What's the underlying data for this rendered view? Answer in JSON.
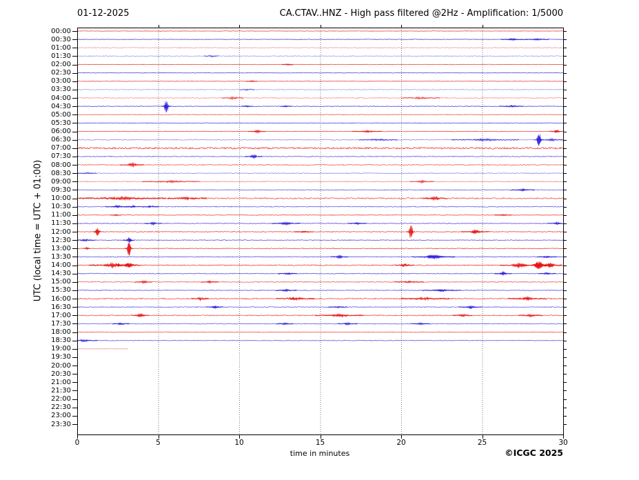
{
  "chart_data": {
    "type": "line",
    "subtype": "helicorder-day-plot",
    "date": "01-12-2025",
    "title": "CA.CTAV..HNZ - High pass filtered @2Hz - Amplification: 1/5000",
    "xlabel": "time in minutes",
    "ylabel": "UTC (local time = UTC + 01:00)",
    "copyright": "©ICGC 2025",
    "xlim": [
      0,
      30
    ],
    "xticks": [
      0,
      5,
      10,
      15,
      20,
      25,
      30
    ],
    "grid": {
      "vertical_dotted_at": [
        5,
        10,
        15,
        20,
        25
      ]
    },
    "trace_colors": {
      "red": "#e81414",
      "blue": "#2414dd"
    },
    "minutes_per_line": 30,
    "legend": "rows alternate red/blue per 30-minute segment; amp = background noise level, events = transient bursts (m = minute, a = relative amplitude, w = width in minutes)",
    "rows": [
      {
        "label": "00:00",
        "color": "red",
        "amp": 0.45,
        "alpha": 0.8,
        "end": 30,
        "events": []
      },
      {
        "label": "00:30",
        "color": "blue",
        "amp": 0.5,
        "alpha": 0.8,
        "end": 30,
        "events": [
          {
            "m": 26.9,
            "a": 1.1,
            "w": 0.25
          },
          {
            "m": 28.4,
            "a": 0.9,
            "w": 0.25
          }
        ]
      },
      {
        "label": "01:00",
        "color": "red",
        "amp": 0.85,
        "alpha": 0.4,
        "end": 30,
        "events": []
      },
      {
        "label": "01:30",
        "color": "blue",
        "amp": 0.85,
        "alpha": 0.4,
        "end": 30,
        "events": [
          {
            "m": 8.3,
            "a": 1.2,
            "w": 0.15
          }
        ]
      },
      {
        "label": "02:00",
        "color": "red",
        "amp": 0.45,
        "alpha": 0.8,
        "end": 30,
        "events": [
          {
            "m": 13,
            "a": 0.9,
            "w": 0.12
          }
        ]
      },
      {
        "label": "02:30",
        "color": "blue",
        "amp": 0.45,
        "alpha": 0.8,
        "end": 30,
        "events": []
      },
      {
        "label": "03:00",
        "color": "red",
        "amp": 0.4,
        "alpha": 0.8,
        "end": 30,
        "events": [
          {
            "m": 10.8,
            "a": 0.8,
            "w": 0.12
          }
        ]
      },
      {
        "label": "03:30",
        "color": "blue",
        "amp": 0.8,
        "alpha": 0.4,
        "end": 30,
        "events": [
          {
            "m": 10.5,
            "a": 1,
            "w": 0.15
          }
        ]
      },
      {
        "label": "04:00",
        "color": "red",
        "amp": 0.85,
        "alpha": 0.45,
        "end": 30,
        "events": [
          {
            "m": 9.6,
            "a": 2.2,
            "w": 0.22
          },
          {
            "m": 21.2,
            "a": 1.2,
            "w": 0.4
          }
        ]
      },
      {
        "label": "04:30",
        "color": "blue",
        "amp": 0.55,
        "alpha": 0.8,
        "end": 30,
        "events": [
          {
            "m": 5.5,
            "a": 9,
            "w": 0.1
          },
          {
            "m": 10.5,
            "a": 1.2,
            "w": 0.12
          },
          {
            "m": 12.9,
            "a": 0.9,
            "w": 0.12
          },
          {
            "m": 26.8,
            "a": 1.2,
            "w": 0.25
          }
        ]
      },
      {
        "label": "05:00",
        "color": "red",
        "amp": 0.6,
        "alpha": 0.7,
        "end": 30,
        "events": []
      },
      {
        "label": "05:30",
        "color": "blue",
        "amp": 0.5,
        "alpha": 0.8,
        "end": 30,
        "events": []
      },
      {
        "label": "06:00",
        "color": "red",
        "amp": 0.5,
        "alpha": 0.8,
        "end": 30,
        "events": [
          {
            "m": 11.1,
            "a": 1.8,
            "w": 0.18
          },
          {
            "m": 17.9,
            "a": 1.1,
            "w": 0.3
          },
          {
            "m": 29.6,
            "a": 1.8,
            "w": 0.15
          }
        ]
      },
      {
        "label": "06:30",
        "color": "blue",
        "amp": 0.75,
        "alpha": 0.5,
        "end": 30,
        "events": [
          {
            "m": 28.5,
            "a": 9.5,
            "w": 0.1
          },
          {
            "m": 25.2,
            "a": 1.3,
            "w": 0.7
          },
          {
            "m": 18.6,
            "a": 1.1,
            "w": 0.4
          },
          {
            "m": 29.3,
            "a": 1.5,
            "w": 0.3
          }
        ]
      },
      {
        "label": "07:00",
        "color": "red",
        "amp": 1.5,
        "alpha": 0.85,
        "end": 30,
        "events": []
      },
      {
        "label": "07:30",
        "color": "blue",
        "amp": 0.75,
        "alpha": 0.7,
        "end": 30,
        "events": [
          {
            "m": 10.9,
            "a": 2.2,
            "w": 0.18
          }
        ]
      },
      {
        "label": "08:00",
        "color": "red",
        "amp": 0.75,
        "alpha": 0.7,
        "end": 30,
        "events": [
          {
            "m": 3.4,
            "a": 2.2,
            "w": 0.25
          }
        ]
      },
      {
        "label": "08:30",
        "color": "blue",
        "amp": 0.65,
        "alpha": 0.5,
        "end": 30,
        "events": [
          {
            "m": 0.6,
            "a": 0.9,
            "w": 0.2
          }
        ]
      },
      {
        "label": "09:00",
        "color": "red",
        "amp": 0.75,
        "alpha": 0.5,
        "end": 30,
        "events": [
          {
            "m": 5.8,
            "a": 1.4,
            "w": 0.6
          },
          {
            "m": 21.3,
            "a": 1.4,
            "w": 0.25
          }
        ]
      },
      {
        "label": "09:30",
        "color": "blue",
        "amp": 0.6,
        "alpha": 0.7,
        "end": 30,
        "events": [
          {
            "m": 27.5,
            "a": 1.4,
            "w": 0.25
          }
        ]
      },
      {
        "label": "10:00",
        "color": "red",
        "amp": 1.15,
        "alpha": 0.75,
        "end": 30,
        "events": [
          {
            "m": 2.8,
            "a": 1.8,
            "w": 0.9
          },
          {
            "m": 6.8,
            "a": 1.5,
            "w": 0.4
          },
          {
            "m": 22.1,
            "a": 1.8,
            "w": 0.25
          }
        ]
      },
      {
        "label": "10:30",
        "color": "blue",
        "amp": 0.75,
        "alpha": 0.7,
        "end": 30,
        "events": [
          {
            "m": 2.5,
            "a": 1.3,
            "w": 0.25
          },
          {
            "m": 3.4,
            "a": 1.3,
            "w": 0.18
          },
          {
            "m": 4.5,
            "a": 1.1,
            "w": 0.18
          }
        ]
      },
      {
        "label": "11:00",
        "color": "red",
        "amp": 0.5,
        "alpha": 0.8,
        "end": 30,
        "events": [
          {
            "m": 2.4,
            "a": 0.9,
            "w": 0.12
          },
          {
            "m": 26.3,
            "a": 0.9,
            "w": 0.18
          }
        ]
      },
      {
        "label": "11:30",
        "color": "blue",
        "amp": 0.65,
        "alpha": 0.75,
        "end": 30,
        "events": [
          {
            "m": 4.7,
            "a": 1.7,
            "w": 0.18
          },
          {
            "m": 12.9,
            "a": 1.9,
            "w": 0.3
          },
          {
            "m": 17.3,
            "a": 1.1,
            "w": 0.2
          },
          {
            "m": 29.6,
            "a": 1.4,
            "w": 0.2
          }
        ]
      },
      {
        "label": "12:00",
        "color": "red",
        "amp": 0.65,
        "alpha": 0.8,
        "end": 30,
        "events": [
          {
            "m": 1.25,
            "a": 5.5,
            "w": 0.09
          },
          {
            "m": 20.6,
            "a": 12,
            "w": 0.09
          },
          {
            "m": 24.6,
            "a": 1.9,
            "w": 0.3
          },
          {
            "m": 14,
            "a": 0.9,
            "w": 0.2
          }
        ]
      },
      {
        "label": "12:30",
        "color": "blue",
        "amp": 0.65,
        "alpha": 0.75,
        "end": 30,
        "events": [
          {
            "m": 0.5,
            "a": 1.4,
            "w": 0.2
          },
          {
            "m": 3.2,
            "a": 3.2,
            "w": 0.12
          }
        ]
      },
      {
        "label": "13:00",
        "color": "red",
        "amp": 0.65,
        "alpha": 0.8,
        "end": 30,
        "events": [
          {
            "m": 0.6,
            "a": 1.8,
            "w": 0.07
          },
          {
            "m": 3.2,
            "a": 11.5,
            "w": 0.09
          }
        ]
      },
      {
        "label": "13:30",
        "color": "blue",
        "amp": 0.65,
        "alpha": 0.75,
        "end": 30,
        "events": [
          {
            "m": 16.2,
            "a": 1.9,
            "w": 0.18
          },
          {
            "m": 22,
            "a": 2.3,
            "w": 0.45
          },
          {
            "m": 29,
            "a": 0.9,
            "w": 0.2
          }
        ]
      },
      {
        "label": "14:00",
        "color": "red",
        "amp": 0.85,
        "alpha": 0.8,
        "end": 30,
        "events": [
          {
            "m": 2.2,
            "a": 2.4,
            "w": 0.5
          },
          {
            "m": 3.2,
            "a": 2.2,
            "w": 0.25
          },
          {
            "m": 20.2,
            "a": 1.7,
            "w": 0.2
          },
          {
            "m": 27.3,
            "a": 2.4,
            "w": 0.4
          },
          {
            "m": 28.5,
            "a": 3.8,
            "w": 0.25
          },
          {
            "m": 29.2,
            "a": 2.2,
            "w": 0.3
          }
        ]
      },
      {
        "label": "14:30",
        "color": "blue",
        "amp": 0.65,
        "alpha": 0.75,
        "end": 30,
        "events": [
          {
            "m": 13,
            "a": 1.1,
            "w": 0.2
          },
          {
            "m": 26.3,
            "a": 1.9,
            "w": 0.18
          },
          {
            "m": 29,
            "a": 1.1,
            "w": 0.18
          }
        ]
      },
      {
        "label": "15:00",
        "color": "red",
        "amp": 0.75,
        "alpha": 0.7,
        "end": 30,
        "events": [
          {
            "m": 4.1,
            "a": 1.7,
            "w": 0.18
          },
          {
            "m": 8.2,
            "a": 1.4,
            "w": 0.18
          },
          {
            "m": 20.5,
            "a": 1.1,
            "w": 0.3
          }
        ]
      },
      {
        "label": "15:30",
        "color": "blue",
        "amp": 0.6,
        "alpha": 0.75,
        "end": 30,
        "events": [
          {
            "m": 12.9,
            "a": 1.4,
            "w": 0.22
          },
          {
            "m": 22.5,
            "a": 1.4,
            "w": 0.4
          }
        ]
      },
      {
        "label": "16:00",
        "color": "red",
        "amp": 1.05,
        "alpha": 0.75,
        "end": 30,
        "events": [
          {
            "m": 7.6,
            "a": 1.7,
            "w": 0.18
          },
          {
            "m": 13.5,
            "a": 1.7,
            "w": 0.4
          },
          {
            "m": 21.5,
            "a": 1.4,
            "w": 0.5
          },
          {
            "m": 27.8,
            "a": 1.9,
            "w": 0.4
          }
        ]
      },
      {
        "label": "16:30",
        "color": "blue",
        "amp": 0.65,
        "alpha": 0.7,
        "end": 30,
        "events": [
          {
            "m": 8.5,
            "a": 1.4,
            "w": 0.18
          },
          {
            "m": 16.1,
            "a": 1.1,
            "w": 0.2
          },
          {
            "m": 24.3,
            "a": 1.7,
            "w": 0.25
          }
        ]
      },
      {
        "label": "17:00",
        "color": "red",
        "amp": 0.85,
        "alpha": 0.75,
        "end": 30,
        "events": [
          {
            "m": 3.9,
            "a": 2.1,
            "w": 0.18
          },
          {
            "m": 16.2,
            "a": 1.7,
            "w": 0.5
          },
          {
            "m": 23.8,
            "a": 1.4,
            "w": 0.2
          },
          {
            "m": 28,
            "a": 1.7,
            "w": 0.25
          }
        ]
      },
      {
        "label": "17:30",
        "color": "blue",
        "amp": 0.65,
        "alpha": 0.7,
        "end": 30,
        "events": [
          {
            "m": 2.7,
            "a": 1.2,
            "w": 0.18
          },
          {
            "m": 12.8,
            "a": 1.2,
            "w": 0.18
          },
          {
            "m": 16.7,
            "a": 1.4,
            "w": 0.2
          },
          {
            "m": 21.2,
            "a": 1.4,
            "w": 0.2
          }
        ]
      },
      {
        "label": "18:00",
        "color": "red",
        "amp": 0.5,
        "alpha": 0.75,
        "end": 30,
        "events": []
      },
      {
        "label": "18:30",
        "color": "blue",
        "amp": 0.6,
        "alpha": 0.7,
        "end": 30,
        "events": [
          {
            "m": 0.4,
            "a": 1.4,
            "w": 0.3
          }
        ]
      },
      {
        "label": "19:00",
        "color": "red",
        "amp": 0.25,
        "alpha": 0.45,
        "end": 3.15,
        "events": []
      },
      {
        "label": "19:30",
        "color": "blue",
        "amp": 0,
        "alpha": 0,
        "end": 0,
        "events": []
      },
      {
        "label": "20:00",
        "color": "red",
        "amp": 0,
        "alpha": 0,
        "end": 0,
        "events": []
      },
      {
        "label": "20:30",
        "color": "blue",
        "amp": 0,
        "alpha": 0,
        "end": 0,
        "events": []
      },
      {
        "label": "21:00",
        "color": "red",
        "amp": 0,
        "alpha": 0,
        "end": 0,
        "events": []
      },
      {
        "label": "21:30",
        "color": "blue",
        "amp": 0,
        "alpha": 0,
        "end": 0,
        "events": []
      },
      {
        "label": "22:00",
        "color": "red",
        "amp": 0,
        "alpha": 0,
        "end": 0,
        "events": []
      },
      {
        "label": "22:30",
        "color": "blue",
        "amp": 0,
        "alpha": 0,
        "end": 0,
        "events": []
      },
      {
        "label": "23:00",
        "color": "red",
        "amp": 0,
        "alpha": 0,
        "end": 0,
        "events": []
      },
      {
        "label": "23:30",
        "color": "blue",
        "amp": 0,
        "alpha": 0,
        "end": 0,
        "events": []
      }
    ]
  }
}
